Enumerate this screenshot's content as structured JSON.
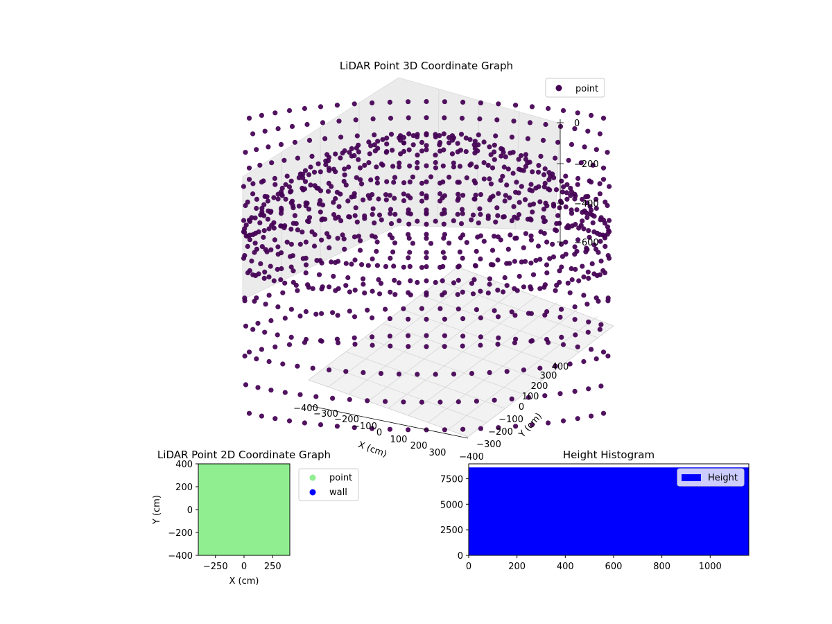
{
  "chart_data": [
    {
      "type": "scatter",
      "projection": "3d",
      "title": "LiDAR Point 3D Coordinate Graph",
      "xlabel": "X (cm)",
      "ylabel": "Y (cm)",
      "zlabel": "",
      "xlim": [
        -400,
        400
      ],
      "ylim": [
        -400,
        400
      ],
      "zlim": [
        -800,
        0
      ],
      "x_ticks": [
        "−400",
        "−300",
        "−200",
        "−100",
        "0",
        "100",
        "200",
        "300"
      ],
      "y_ticks": [
        "−400",
        "−300",
        "−200",
        "−100",
        "0",
        "100",
        "200",
        "300",
        "400"
      ],
      "z_ticks": [
        "0",
        "−200",
        "−400",
        "−600"
      ],
      "grid": true,
      "legend": {
        "position": "top-right",
        "entries": [
          "point"
        ]
      },
      "series": [
        {
          "name": "point",
          "color": "#440154",
          "shape": "hemispherical bowl",
          "radius": 400,
          "depth": 800,
          "rings": 14,
          "spokes": 80
        }
      ]
    },
    {
      "type": "scatter",
      "title": "LiDAR Point 2D Coordinate Graph",
      "xlabel": "X (cm)",
      "ylabel": "Y (cm)",
      "xlim": [
        -400,
        400
      ],
      "ylim": [
        -400,
        400
      ],
      "x_ticks": [
        -250,
        0,
        250
      ],
      "y_ticks": [
        400,
        200,
        0,
        -200,
        -400
      ],
      "legend": {
        "position": "outside-right",
        "entries": [
          "point",
          "wall"
        ]
      },
      "series": [
        {
          "name": "point",
          "color": "#90ee90",
          "fill": "full"
        },
        {
          "name": "wall",
          "color": "#0000ff"
        }
      ]
    },
    {
      "type": "bar",
      "title": "Height Histogram",
      "xlabel": "",
      "ylabel": "",
      "xlim": [
        0,
        1160
      ],
      "ylim": [
        0,
        8950
      ],
      "x_ticks": [
        0,
        200,
        400,
        600,
        800,
        1000
      ],
      "y_ticks": [
        0,
        2500,
        5000,
        7500
      ],
      "legend": {
        "position": "top-right",
        "entries": [
          "Height"
        ]
      },
      "series": [
        {
          "name": "Height",
          "color": "#0000ff",
          "bins": [
            [
              0,
              1160,
              8600
            ]
          ]
        }
      ]
    }
  ]
}
